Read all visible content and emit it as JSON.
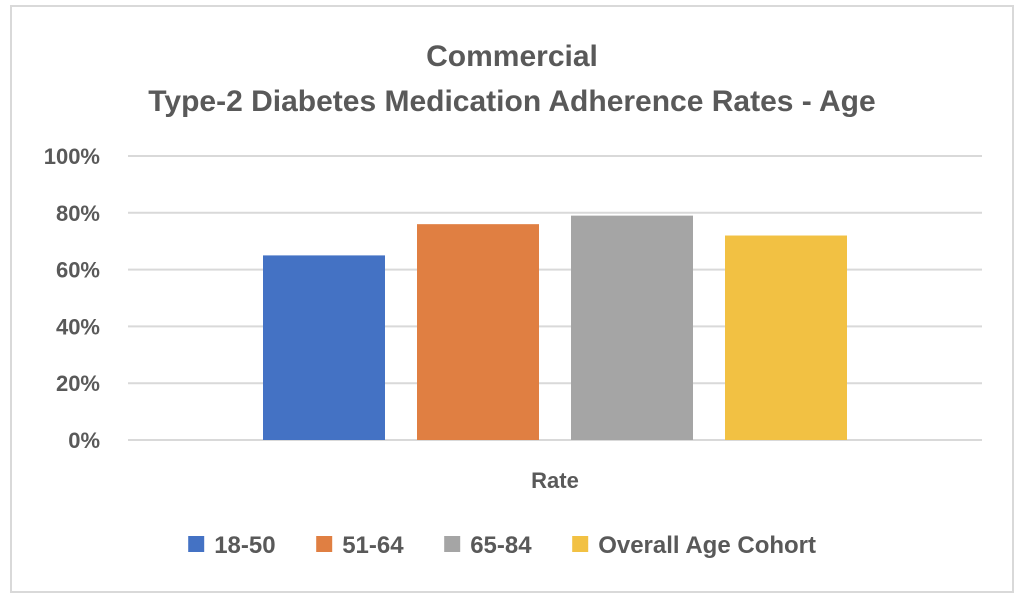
{
  "chart_data": {
    "type": "bar",
    "title": [
      "Commercial",
      "Type-2 Diabetes Medication Adherence Rates - Age"
    ],
    "xlabel": "",
    "ylabel": "",
    "categories": [
      "Rate"
    ],
    "category_label": "Rate",
    "series": [
      {
        "name": "18-50",
        "values": [
          0.65
        ],
        "color": "#4472C4"
      },
      {
        "name": "51-64",
        "values": [
          0.76
        ],
        "color": "#E07F42"
      },
      {
        "name": "65-84",
        "values": [
          0.79
        ],
        "color": "#A5A5A5"
      },
      {
        "name": "Overall Age Cohort",
        "values": [
          0.72
        ],
        "color": "#F2C143"
      }
    ],
    "ylim": [
      0,
      1
    ],
    "yticks": [
      0,
      0.2,
      0.4,
      0.6,
      0.8,
      1.0
    ],
    "ytick_labels": [
      "0%",
      "20%",
      "40%",
      "60%",
      "80%",
      "100%"
    ],
    "grid": true,
    "gridline_color": "#d9d9d9",
    "legend": "bottom"
  }
}
